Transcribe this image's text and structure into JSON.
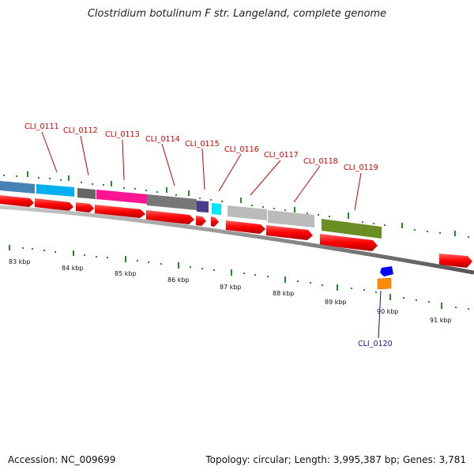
{
  "title": "Clostridium botulinum F str. Langeland, complete genome",
  "footer": {
    "accession": "Accession: NC_009699",
    "summary": "Topology: circular; Length: 3,995,387 bp; Genes: 3,781"
  },
  "kbp_labels": [
    "83 kbp",
    "84 kbp",
    "85 kbp",
    "86 kbp",
    "87 kbp",
    "88 kbp",
    "89 kbp",
    "90 kbp",
    "91 kbp"
  ],
  "gene_labels": [
    "CLI_0111",
    "CLI_0112",
    "CLI_0113",
    "CLI_0114",
    "CLI_0115",
    "CLI_0116",
    "CLI_0117",
    "CLI_0118",
    "CLI_0119"
  ],
  "gene_label_below": "CLI_0120",
  "colors": {
    "cds": "#ff0000",
    "backbone": "#808080",
    "tick": "#2a8a2a",
    "label_red": "#cc0000",
    "label_blue": "#1010a0",
    "steelblue": "#4682b4",
    "deepskyblue": "#00b0f0",
    "dimgray": "#666666",
    "deeppink": "#ff1493",
    "darkgray": "#777777",
    "slateblue": "#483d8b",
    "cyan": "#00ffff",
    "silver": "#bbbbbb",
    "olive": "#6b8e23",
    "blue": "#0000ff",
    "orange": "#ff8c00"
  }
}
